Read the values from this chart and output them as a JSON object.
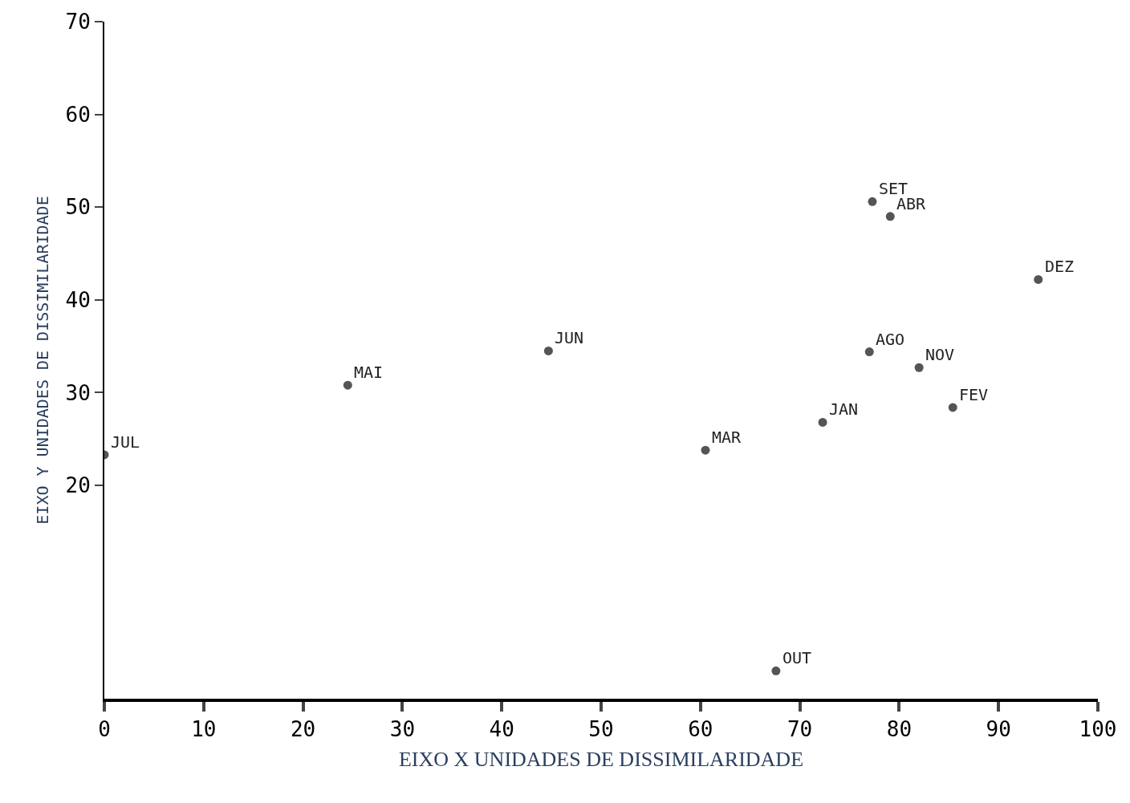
{
  "chart_data": {
    "type": "scatter",
    "xlabel": "EIXO X UNIDADES DE DISSIMILARIDADE",
    "ylabel": "EIXO Y UNIDADES DE DISSIMILARIDADE",
    "x": [
      24.5,
      44.7,
      0,
      60.5,
      72.3,
      67.6,
      77.0,
      77.3,
      79.1,
      82.0,
      85.4,
      94.0
    ],
    "series": [
      {
        "color": "#555555",
        "values": [
          30.8,
          34.5,
          23.3,
          23.8,
          26.8,
          0,
          34.4,
          50.6,
          49.0,
          32.7,
          28.4,
          42.2
        ]
      }
    ],
    "annotations": [
      {
        "text": "MAI",
        "x": 24.5,
        "y": 30.8
      },
      {
        "text": "JUN",
        "x": 44.7,
        "y": 34.5
      },
      {
        "text": "JUL",
        "x": 0,
        "y": 23.3
      },
      {
        "text": "MAR",
        "x": 60.5,
        "y": 23.8
      },
      {
        "text": "JAN",
        "x": 72.3,
        "y": 26.8
      },
      {
        "text": "OUT",
        "x": 67.6,
        "y": 0
      },
      {
        "text": "AGO",
        "x": 77.0,
        "y": 34.4
      },
      {
        "text": "SET",
        "x": 77.3,
        "y": 50.6
      },
      {
        "text": "ABR",
        "x": 79.1,
        "y": 49.0
      },
      {
        "text": "NOV",
        "x": 82.0,
        "y": 32.7
      },
      {
        "text": "FEV",
        "x": 85.4,
        "y": 28.4
      },
      {
        "text": "DEZ",
        "x": 94.0,
        "y": 42.2
      }
    ],
    "xlim": [
      0,
      100
    ],
    "xticks": [
      0,
      10,
      20,
      30,
      40,
      50,
      60,
      70,
      80,
      90,
      100
    ],
    "ylim": [
      -3,
      70
    ],
    "yticks": [
      20,
      30,
      40,
      50,
      60,
      70
    ],
    "marker": "circle"
  }
}
